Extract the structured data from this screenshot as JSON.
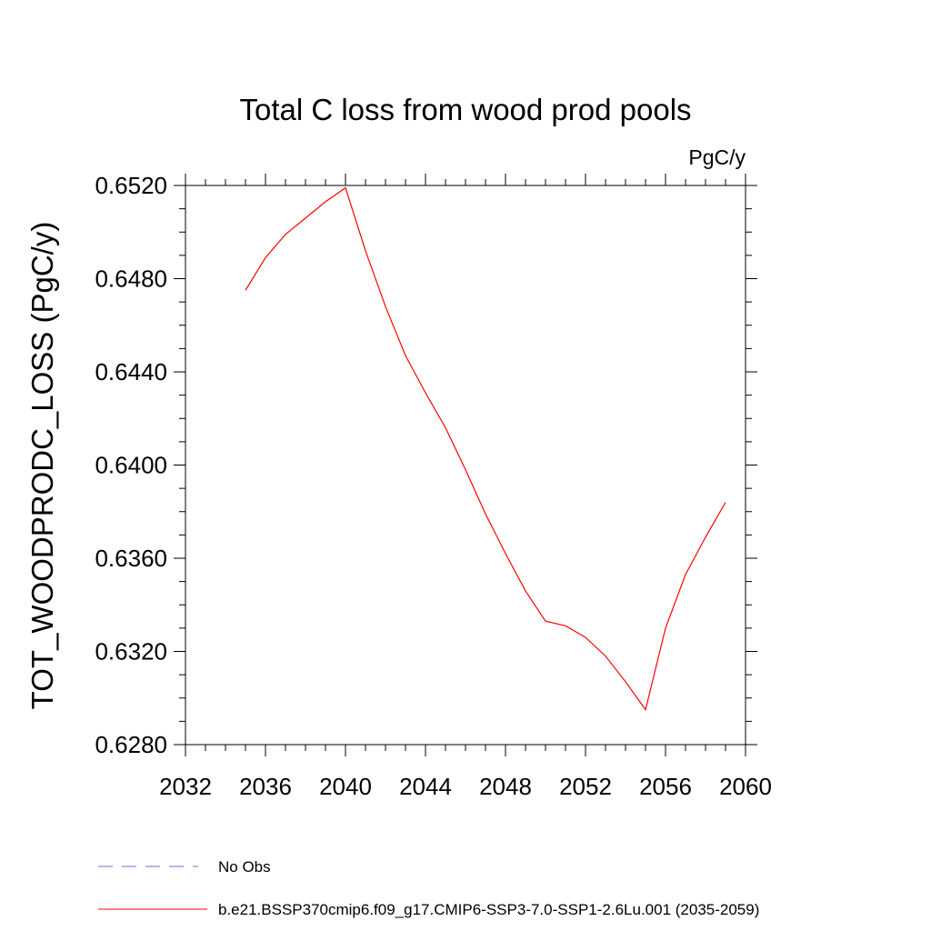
{
  "chart_data": {
    "type": "line",
    "title": "Total C loss from wood prod pools",
    "units_label": "PgC/y",
    "ylabel": "TOT_WOODPRODC_LOSS  (PgC/y)",
    "xlabel": "",
    "xlim": [
      2032,
      2060
    ],
    "ylim": [
      0.628,
      0.652
    ],
    "x_ticks": [
      "2032",
      "2036",
      "2040",
      "2044",
      "2048",
      "2052",
      "2056",
      "2060"
    ],
    "y_ticks": [
      "0.6280",
      "0.6320",
      "0.6360",
      "0.6400",
      "0.6440",
      "0.6480",
      "0.6520"
    ],
    "grid": false,
    "legend_position": "bottom",
    "series": [
      {
        "name": "b.e21.BSSP370cmip6.f09_g17.CMIP6-SSP3-7.0-SSP1-2.6Lu.001 (2035-2059)",
        "color": "#ff0000",
        "style": "solid",
        "x": [
          2035,
          2036,
          2037,
          2038,
          2039,
          2040,
          2041,
          2042,
          2043,
          2044,
          2045,
          2046,
          2047,
          2048,
          2049,
          2050,
          2051,
          2052,
          2053,
          2054,
          2055,
          2056,
          2057,
          2058,
          2059
        ],
        "y": [
          0.6475,
          0.6489,
          0.6499,
          0.6506,
          0.6513,
          0.6519,
          0.6492,
          0.6468,
          0.6447,
          0.6431,
          0.6416,
          0.6398,
          0.6379,
          0.6362,
          0.6346,
          0.6333,
          0.6331,
          0.6326,
          0.6318,
          0.6307,
          0.6295,
          0.633,
          0.6353,
          0.6369,
          0.6384
        ]
      }
    ],
    "legend": [
      {
        "label": "No Obs",
        "color": "#7b68c8",
        "style": "dashed"
      },
      {
        "label": "b.e21.BSSP370cmip6.f09_g17.CMIP6-SSP3-7.0-SSP1-2.6Lu.001 (2035-2059)",
        "color": "#ff0000",
        "style": "solid"
      }
    ]
  }
}
